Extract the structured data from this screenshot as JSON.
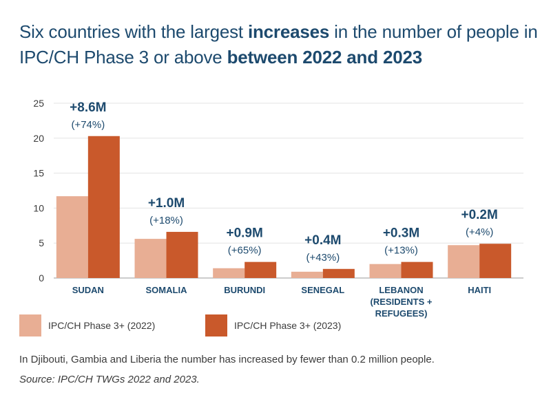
{
  "title": {
    "part1": "Six countries with the largest ",
    "bold1": "increases",
    "part2": " in the number of people in IPC/CH Phase 3 or above ",
    "bold2": "between 2022 and 2023"
  },
  "chart_data": {
    "type": "bar",
    "title": "Six countries with the largest increases in the number of people in IPC/CH Phase 3 or above between 2022 and 2023",
    "categories": [
      "SUDAN",
      "SOMALIA",
      "BURUNDI",
      "SENEGAL",
      "LEBANON (RESIDENTS + REFUGEES)",
      "HAITI"
    ],
    "category_lines": [
      [
        "SUDAN"
      ],
      [
        "SOMALIA"
      ],
      [
        "BURUNDI"
      ],
      [
        "SENEGAL"
      ],
      [
        "LEBANON",
        "(RESIDENTS +",
        "REFUGEES)"
      ],
      [
        "HAITI"
      ]
    ],
    "series": [
      {
        "name": "IPC/CH Phase 3+ (2022)",
        "color": "#e8ae94",
        "values": [
          11.7,
          5.6,
          1.4,
          0.9,
          2.0,
          4.7
        ]
      },
      {
        "name": "IPC/CH Phase 3+ (2023)",
        "color": "#c9592b",
        "values": [
          20.3,
          6.6,
          2.3,
          1.3,
          2.3,
          4.9
        ]
      }
    ],
    "change_labels": [
      "+8.6M",
      "+1.0M",
      "+0.9M",
      "+0.4M",
      "+0.3M",
      "+0.2M"
    ],
    "pct_labels": [
      "(+74%)",
      "(+18%)",
      "(+65%)",
      "(+43%)",
      "(+13%)",
      "(+4%)"
    ],
    "yticks": [
      0,
      5,
      10,
      15,
      20,
      25
    ],
    "ylim": [
      0,
      25
    ],
    "xlabel": "",
    "ylabel": "",
    "grid": true,
    "legend_position": "bottom-left"
  },
  "legend": {
    "label_2022": "IPC/CH Phase 3+ (2022)",
    "label_2023": "IPC/CH Phase 3+ (2023)",
    "color_2022": "#e8ae94",
    "color_2023": "#c9592b"
  },
  "note": "In Djibouti, Gambia and Liberia the number has increased by fewer than 0.2 million people.",
  "source": "Source: IPC/CH TWGs 2022 and 2023."
}
